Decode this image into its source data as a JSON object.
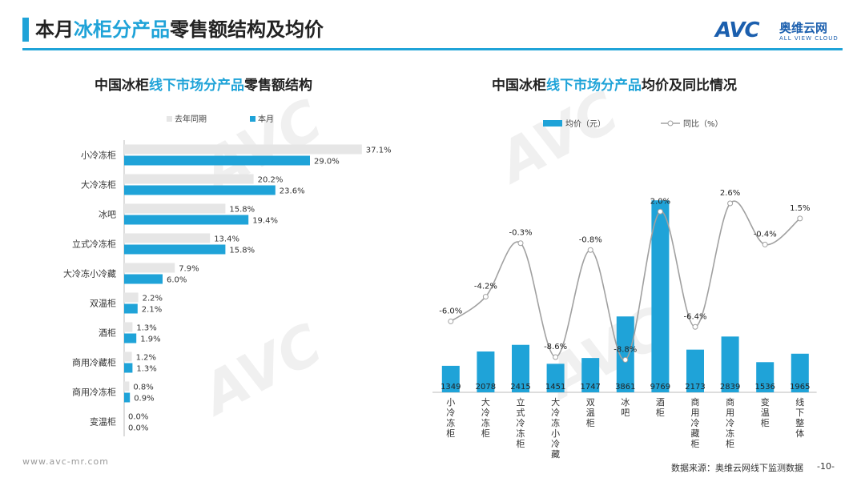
{
  "page": {
    "title_pre": "本月",
    "title_hl": "冰柜分产品",
    "title_post": "零售额结构及均价",
    "logo_mark": "AVC",
    "logo_cn": "奥维云网",
    "logo_en": "ALL VIEW CLOUD",
    "footer_url": "www.avc-mr.com",
    "footer_source": "数据来源：奥维云网线下监测数据",
    "page_number": "-10-",
    "colors": {
      "accent": "#1fa3d8",
      "grey_bar": "#e6e6e6",
      "line": "#a0a0a0"
    }
  },
  "chart_data": [
    {
      "type": "bar",
      "orientation": "horizontal",
      "title_pre": "中国冰柜",
      "title_hl": "线下市场分产品",
      "title_post": "零售额结构",
      "legend": [
        "去年同期",
        "本月"
      ],
      "categories": [
        "小冷冻柜",
        "大冷冻柜",
        "冰吧",
        "立式冷冻柜",
        "大冷冻小冷藏",
        "双温柜",
        "酒柜",
        "商用冷藏柜",
        "商用冷冻柜",
        "变温柜"
      ],
      "series": [
        {
          "name": "去年同期",
          "values": [
            37.1,
            20.2,
            15.8,
            13.4,
            7.9,
            2.2,
            1.3,
            1.2,
            0.8,
            0.0
          ],
          "labels": [
            "37.1%",
            "20.2%",
            "15.8%",
            "13.4%",
            "7.9%",
            "2.2%",
            "1.3%",
            "1.2%",
            "0.8%",
            "0.0%"
          ]
        },
        {
          "name": "本月",
          "values": [
            29.0,
            23.6,
            19.4,
            15.8,
            6.0,
            2.1,
            1.9,
            1.3,
            0.9,
            0.0
          ],
          "labels": [
            "29.0%",
            "23.6%",
            "19.4%",
            "15.8%",
            "6.0%",
            "2.1%",
            "1.9%",
            "1.3%",
            "0.9%",
            "0.0%"
          ]
        }
      ],
      "xlim": [
        0,
        40
      ]
    },
    {
      "type": "bar+line",
      "title_pre": "中国冰柜",
      "title_hl": "线下市场分产品",
      "title_post": "均价及同比情况",
      "legend": [
        "均价（元）",
        "同比（%）"
      ],
      "categories": [
        "小冷冻柜",
        "大冷冻柜",
        "立式冷冻柜",
        "大冷冻小冷藏",
        "双温柜",
        "冰吧",
        "酒柜",
        "商用冷藏柜",
        "商用冷冻柜",
        "变温柜",
        "线下整体"
      ],
      "series": [
        {
          "name": "均价（元）",
          "type": "bar",
          "values": [
            1349,
            2078,
            2415,
            1451,
            1747,
            3861,
            9769,
            2173,
            2839,
            1536,
            1965
          ],
          "labels": [
            "1349",
            "2078",
            "2415",
            "1451",
            "1747",
            "3861",
            "9769",
            "2173",
            "2839",
            "1536",
            "1965"
          ]
        },
        {
          "name": "同比（%）",
          "type": "line",
          "values": [
            -6.0,
            -4.2,
            -0.3,
            -8.6,
            -0.8,
            -8.8,
            2.0,
            -6.4,
            2.6,
            -0.4,
            1.5
          ],
          "labels": [
            "-6.0%",
            "-4.2%",
            "-0.3%",
            "-8.6%",
            "-0.8%",
            "-8.8%",
            "2.0%",
            "-6.4%",
            "2.6%",
            "-0.4%",
            "1.5%"
          ]
        }
      ],
      "ylim_bar": [
        0,
        11000
      ],
      "ylim_line": [
        -10,
        4
      ]
    }
  ]
}
